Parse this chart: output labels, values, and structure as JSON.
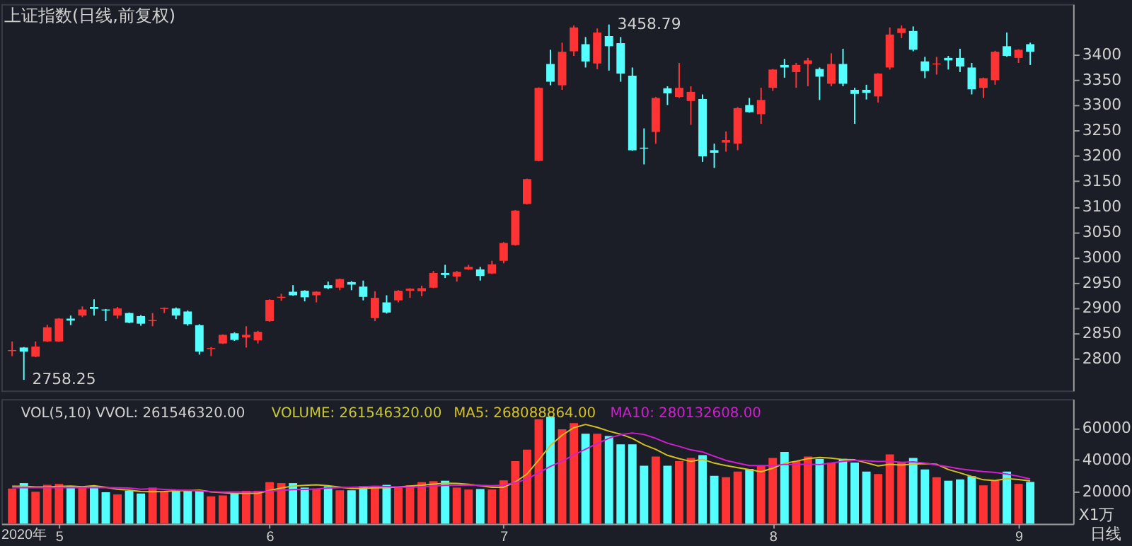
{
  "chart_data": [
    {
      "type": "candlestick",
      "title": "上证指数(日线,前复权)",
      "tick_labels": "y",
      "grid": false,
      "categories": [
        null,
        null,
        null,
        null,
        "5",
        null,
        null,
        null,
        null,
        null,
        null,
        null,
        null,
        null,
        null,
        null,
        null,
        null,
        null,
        null,
        null,
        null,
        "6",
        null,
        null,
        null,
        null,
        null,
        null,
        null,
        null,
        null,
        null,
        null,
        null,
        null,
        null,
        null,
        null,
        null,
        null,
        null,
        "7",
        null,
        null,
        null,
        null,
        null,
        null,
        null,
        null,
        null,
        null,
        null,
        null,
        null,
        null,
        null,
        null,
        null,
        null,
        null,
        null,
        null,
        null,
        "8",
        null,
        null,
        null,
        null,
        null,
        null,
        null,
        null,
        null,
        null,
        null,
        null,
        null,
        null,
        null,
        null,
        null,
        null,
        null,
        null,
        "9",
        null
      ],
      "ohlc": [
        [
          2815,
          2834,
          2805,
          2817
        ],
        [
          2822,
          2823,
          2758.25,
          2814
        ],
        [
          2804,
          2834,
          2803,
          2824
        ],
        [
          2834,
          2867,
          2833,
          2862
        ],
        [
          2834,
          2880,
          2833,
          2879
        ],
        [
          2879,
          2885,
          2866,
          2875
        ],
        [
          2885,
          2903,
          2882,
          2897
        ],
        [
          2902,
          2917,
          2885,
          2898
        ],
        [
          2897,
          2898,
          2874,
          2895
        ],
        [
          2885,
          2902,
          2879,
          2899
        ],
        [
          2890,
          2891,
          2870,
          2871
        ],
        [
          2884,
          2886,
          2865,
          2869
        ],
        [
          2874,
          2890,
          2864,
          2876
        ],
        [
          2898,
          2901,
          2890,
          2900
        ],
        [
          2899,
          2901,
          2878,
          2885
        ],
        [
          2893,
          2895,
          2865,
          2868
        ],
        [
          2866,
          2868,
          2808,
          2814
        ],
        [
          2819,
          2823,
          2805,
          2821
        ],
        [
          2830,
          2848,
          2829,
          2847
        ],
        [
          2850,
          2852,
          2835,
          2837
        ],
        [
          2842,
          2864,
          2822,
          2847
        ],
        [
          2836,
          2855,
          2830,
          2853
        ],
        [
          2874,
          2917,
          2873,
          2916
        ],
        [
          2920,
          2928,
          2914,
          2922
        ],
        [
          2932,
          2945,
          2924,
          2925
        ],
        [
          2934,
          2935,
          2913,
          2921
        ],
        [
          2925,
          2933,
          2911,
          2932
        ],
        [
          2945,
          2952,
          2937,
          2939
        ],
        [
          2940,
          2958,
          2935,
          2957
        ],
        [
          2951,
          2953,
          2935,
          2946
        ],
        [
          2942,
          2954,
          2915,
          2922
        ],
        [
          2880,
          2933,
          2874,
          2920
        ],
        [
          2911,
          2925,
          2889,
          2891
        ],
        [
          2915,
          2935,
          2911,
          2934
        ],
        [
          2934,
          2939,
          2920,
          2938
        ],
        [
          2933,
          2944,
          2923,
          2939
        ],
        [
          2940,
          2973,
          2939,
          2969
        ],
        [
          2969,
          2985,
          2959,
          2965
        ],
        [
          2962,
          2973,
          2952,
          2971
        ],
        [
          2976,
          2985,
          2975,
          2981
        ],
        [
          2976,
          2981,
          2954,
          2963
        ],
        [
          2968,
          2993,
          2967,
          2986
        ],
        [
          2993,
          3030,
          2988,
          3028
        ],
        [
          3024,
          3093,
          3023,
          3092
        ],
        [
          3105,
          3155,
          3104,
          3154
        ],
        [
          3190,
          3335,
          3189,
          3334
        ],
        [
          3381,
          3409,
          3339,
          3346
        ],
        [
          3339,
          3423,
          3330,
          3405
        ],
        [
          3406,
          3457,
          3397,
          3453
        ],
        [
          3420,
          3434,
          3374,
          3386
        ],
        [
          3382,
          3451,
          3371,
          3443
        ],
        [
          3436,
          3458.79,
          3368,
          3416
        ],
        [
          3422,
          3434,
          3346,
          3362
        ],
        [
          3358,
          3374,
          3210,
          3211
        ],
        [
          3216,
          3254,
          3183,
          3214
        ],
        [
          3247,
          3316,
          3224,
          3314
        ],
        [
          3333,
          3337,
          3300,
          3323
        ],
        [
          3316,
          3383,
          3314,
          3334
        ],
        [
          3308,
          3337,
          3261,
          3326
        ],
        [
          3312,
          3321,
          3188,
          3199
        ],
        [
          3211,
          3224,
          3176,
          3206
        ],
        [
          3226,
          3248,
          3208,
          3231
        ],
        [
          3224,
          3296,
          3211,
          3294
        ],
        [
          3300,
          3314,
          3285,
          3286
        ],
        [
          3282,
          3334,
          3263,
          3310
        ],
        [
          3334,
          3371,
          3328,
          3370
        ],
        [
          3379,
          3391,
          3354,
          3374
        ],
        [
          3365,
          3383,
          3334,
          3379
        ],
        [
          3381,
          3393,
          3337,
          3388
        ],
        [
          3371,
          3374,
          3310,
          3356
        ],
        [
          3342,
          3402,
          3337,
          3381
        ],
        [
          3381,
          3411,
          3337,
          3342
        ],
        [
          3330,
          3334,
          3263,
          3322
        ],
        [
          3330,
          3340,
          3311,
          3324
        ],
        [
          3317,
          3363,
          3305,
          3362
        ],
        [
          3374,
          3453,
          3370,
          3439
        ],
        [
          3442,
          3457,
          3432,
          3451
        ],
        [
          3446,
          3455,
          3406,
          3409
        ],
        [
          3386,
          3395,
          3353,
          3367
        ],
        [
          3380,
          3395,
          3360,
          3382
        ],
        [
          3393,
          3397,
          3370,
          3388
        ],
        [
          3393,
          3411,
          3365,
          3376
        ],
        [
          3374,
          3383,
          3321,
          3331
        ],
        [
          3334,
          3354,
          3314,
          3353
        ],
        [
          3349,
          3407,
          3340,
          3405
        ],
        [
          3416,
          3443,
          3395,
          3397
        ],
        [
          3393,
          3410,
          3383,
          3409
        ],
        [
          3420,
          3423,
          3379,
          3405
        ]
      ],
      "colors": [
        "#ff3333",
        "#55ffff",
        "#ff3333",
        "#ff3333",
        "#ff3333",
        "#55ffff",
        "#ff3333",
        "#55ffff",
        "#55ffff",
        "#ff3333",
        "#55ffff",
        "#55ffff",
        "#ff3333",
        "#ff3333",
        "#55ffff",
        "#55ffff",
        "#55ffff",
        "#ff3333",
        "#ff3333",
        "#55ffff",
        "#ff3333",
        "#ff3333",
        "#ff3333",
        "#ff3333",
        "#55ffff",
        "#55ffff",
        "#ff3333",
        "#55ffff",
        "#ff3333",
        "#55ffff",
        "#55ffff",
        "#ff3333",
        "#55ffff",
        "#ff3333",
        "#ff3333",
        "#ff3333",
        "#ff3333",
        "#55ffff",
        "#ff3333",
        "#ff3333",
        "#55ffff",
        "#ff3333",
        "#ff3333",
        "#ff3333",
        "#ff3333",
        "#ff3333",
        "#55ffff",
        "#ff3333",
        "#ff3333",
        "#55ffff",
        "#ff3333",
        "#55ffff",
        "#55ffff",
        "#55ffff",
        "#55ffff",
        "#ff3333",
        "#55ffff",
        "#ff3333",
        "#ff3333",
        "#55ffff",
        "#55ffff",
        "#ff3333",
        "#ff3333",
        "#55ffff",
        "#ff3333",
        "#ff3333",
        "#55ffff",
        "#ff3333",
        "#ff3333",
        "#55ffff",
        "#ff3333",
        "#55ffff",
        "#55ffff",
        "#55ffff",
        "#ff3333",
        "#ff3333",
        "#ff3333",
        "#55ffff",
        "#55ffff",
        "#ff3333",
        "#55ffff",
        "#55ffff",
        "#55ffff",
        "#ff3333",
        "#ff3333",
        "#55ffff",
        "#ff3333",
        "#55ffff"
      ],
      "ylim": [
        2737,
        3499
      ],
      "yticks": [
        2800,
        2850,
        2900,
        2950,
        3000,
        3050,
        3100,
        3150,
        3200,
        3250,
        3300,
        3350,
        3400
      ],
      "annotations": [
        "2758.25",
        "3458.79"
      ]
    },
    {
      "type": "bar",
      "title": "VOL(5,10) VVOL: 261546320.00",
      "subtitle": "VOLUME: 261546320.00",
      "xlabel": "日线",
      "ylabel": "X1万",
      "legend": "top",
      "grid": false,
      "annotations": [
        "2020年"
      ],
      "categories": [
        null,
        null,
        null,
        null,
        "5",
        null,
        null,
        null,
        null,
        null,
        null,
        null,
        null,
        null,
        null,
        null,
        null,
        null,
        null,
        null,
        null,
        null,
        "6",
        null,
        null,
        null,
        null,
        null,
        null,
        null,
        null,
        null,
        null,
        null,
        null,
        null,
        null,
        null,
        null,
        null,
        null,
        null,
        "7",
        null,
        null,
        null,
        null,
        null,
        null,
        null,
        null,
        null,
        null,
        null,
        null,
        null,
        null,
        null,
        null,
        null,
        null,
        null,
        null,
        null,
        null,
        "8",
        null,
        null,
        null,
        null,
        null,
        null,
        null,
        null,
        null,
        null,
        null,
        null,
        null,
        null,
        null,
        null,
        null,
        null,
        null,
        null,
        "9",
        null
      ],
      "series": [
        {
          "type": "bar",
          "colors": [
            "#ff3333",
            "#55ffff",
            "#ff3333",
            "#ff3333",
            "#ff3333",
            "#55ffff",
            "#ff3333",
            "#55ffff",
            "#55ffff",
            "#ff3333",
            "#55ffff",
            "#55ffff",
            "#ff3333",
            "#ff3333",
            "#55ffff",
            "#55ffff",
            "#55ffff",
            "#ff3333",
            "#ff3333",
            "#55ffff",
            "#ff3333",
            "#ff3333",
            "#ff3333",
            "#ff3333",
            "#55ffff",
            "#55ffff",
            "#ff3333",
            "#55ffff",
            "#ff3333",
            "#55ffff",
            "#55ffff",
            "#ff3333",
            "#55ffff",
            "#ff3333",
            "#ff3333",
            "#ff3333",
            "#ff3333",
            "#55ffff",
            "#ff3333",
            "#ff3333",
            "#55ffff",
            "#ff3333",
            "#ff3333",
            "#ff3333",
            "#ff3333",
            "#ff3333",
            "#55ffff",
            "#ff3333",
            "#ff3333",
            "#55ffff",
            "#ff3333",
            "#55ffff",
            "#55ffff",
            "#55ffff",
            "#55ffff",
            "#ff3333",
            "#55ffff",
            "#ff3333",
            "#ff3333",
            "#55ffff",
            "#55ffff",
            "#ff3333",
            "#ff3333",
            "#55ffff",
            "#ff3333",
            "#ff3333",
            "#55ffff",
            "#ff3333",
            "#ff3333",
            "#55ffff",
            "#ff3333",
            "#55ffff",
            "#55ffff",
            "#55ffff",
            "#ff3333",
            "#ff3333",
            "#ff3333",
            "#55ffff",
            "#55ffff",
            "#ff3333",
            "#55ffff",
            "#55ffff",
            "#55ffff",
            "#ff3333",
            "#ff3333",
            "#55ffff",
            "#ff3333",
            "#55ffff"
          ],
          "values": [
            22000,
            25400,
            20000,
            24300,
            24900,
            23400,
            23100,
            23100,
            19700,
            18300,
            20600,
            18900,
            22600,
            20000,
            21400,
            20600,
            20600,
            17100,
            17700,
            19100,
            20600,
            20600,
            26000,
            25400,
            25400,
            22600,
            22000,
            23400,
            20900,
            20900,
            23400,
            23400,
            24300,
            22900,
            24000,
            26000,
            26600,
            26900,
            22600,
            21400,
            21700,
            21400,
            27100,
            39100,
            46300,
            65400,
            66900,
            59100,
            62900,
            56300,
            56300,
            54900,
            49700,
            49700,
            36300,
            42000,
            36300,
            39100,
            41100,
            42900,
            30000,
            29100,
            32600,
            34300,
            36300,
            41100,
            44900,
            39100,
            42000,
            40600,
            38300,
            40600,
            38300,
            32600,
            31100,
            43400,
            38300,
            41100,
            34000,
            29100,
            26900,
            27700,
            29700,
            24000,
            26900,
            32600,
            24900,
            26155
          ]
        },
        {
          "type": "line",
          "name": "MA5: 268088864.00",
          "color": "#d4c020",
          "values": [
            23400,
            23400,
            23000,
            23000,
            23300,
            23600,
            23100,
            23800,
            22800,
            21500,
            21000,
            20100,
            20000,
            20100,
            20700,
            20700,
            21000,
            19900,
            19500,
            19000,
            19000,
            19000,
            20800,
            22300,
            23600,
            24000,
            24300,
            23800,
            22900,
            22000,
            22100,
            22400,
            22600,
            23000,
            23600,
            24100,
            24800,
            25300,
            25200,
            24700,
            23800,
            22800,
            22800,
            26100,
            31100,
            39900,
            49000,
            55400,
            60100,
            62100,
            60300,
            57900,
            56000,
            53400,
            49400,
            46500,
            42800,
            40700,
            39000,
            40300,
            37900,
            36400,
            35100,
            33800,
            32500,
            34700,
            37800,
            39100,
            40700,
            41500,
            41000,
            40100,
            40000,
            38100,
            36200,
            37200,
            36700,
            37300,
            37600,
            37200,
            33900,
            31800,
            29500,
            27500,
            27000,
            28200,
            27600,
            26800
          ]
        },
        {
          "type": "line",
          "name": "MA10: 280132608.00",
          "color": "#d21ed2",
          "values": [
            22600,
            22600,
            22600,
            22600,
            22600,
            22600,
            22600,
            22600,
            22600,
            22400,
            22300,
            21600,
            21900,
            21500,
            21100,
            20900,
            20600,
            20000,
            19800,
            19900,
            19900,
            20000,
            20400,
            20900,
            21300,
            21500,
            21700,
            22300,
            22600,
            22800,
            23100,
            23400,
            23200,
            23000,
            22800,
            23100,
            23600,
            24000,
            24100,
            24200,
            24000,
            23800,
            24100,
            25700,
            27900,
            31900,
            35900,
            39100,
            43100,
            46600,
            50100,
            53500,
            55700,
            56800,
            55800,
            53400,
            50400,
            48400,
            46200,
            44900,
            42200,
            39600,
            37900,
            36400,
            36400,
            36300,
            37100,
            37100,
            37300,
            37000,
            37900,
            39000,
            39600,
            39400,
            38900,
            39100,
            38400,
            38700,
            37900,
            36700,
            35600,
            34300,
            33400,
            32600,
            32100,
            31100,
            29700,
            28000
          ]
        }
      ],
      "ylim": [
        0,
        78000
      ],
      "yticks": [
        20000,
        40000,
        60000
      ]
    }
  ]
}
